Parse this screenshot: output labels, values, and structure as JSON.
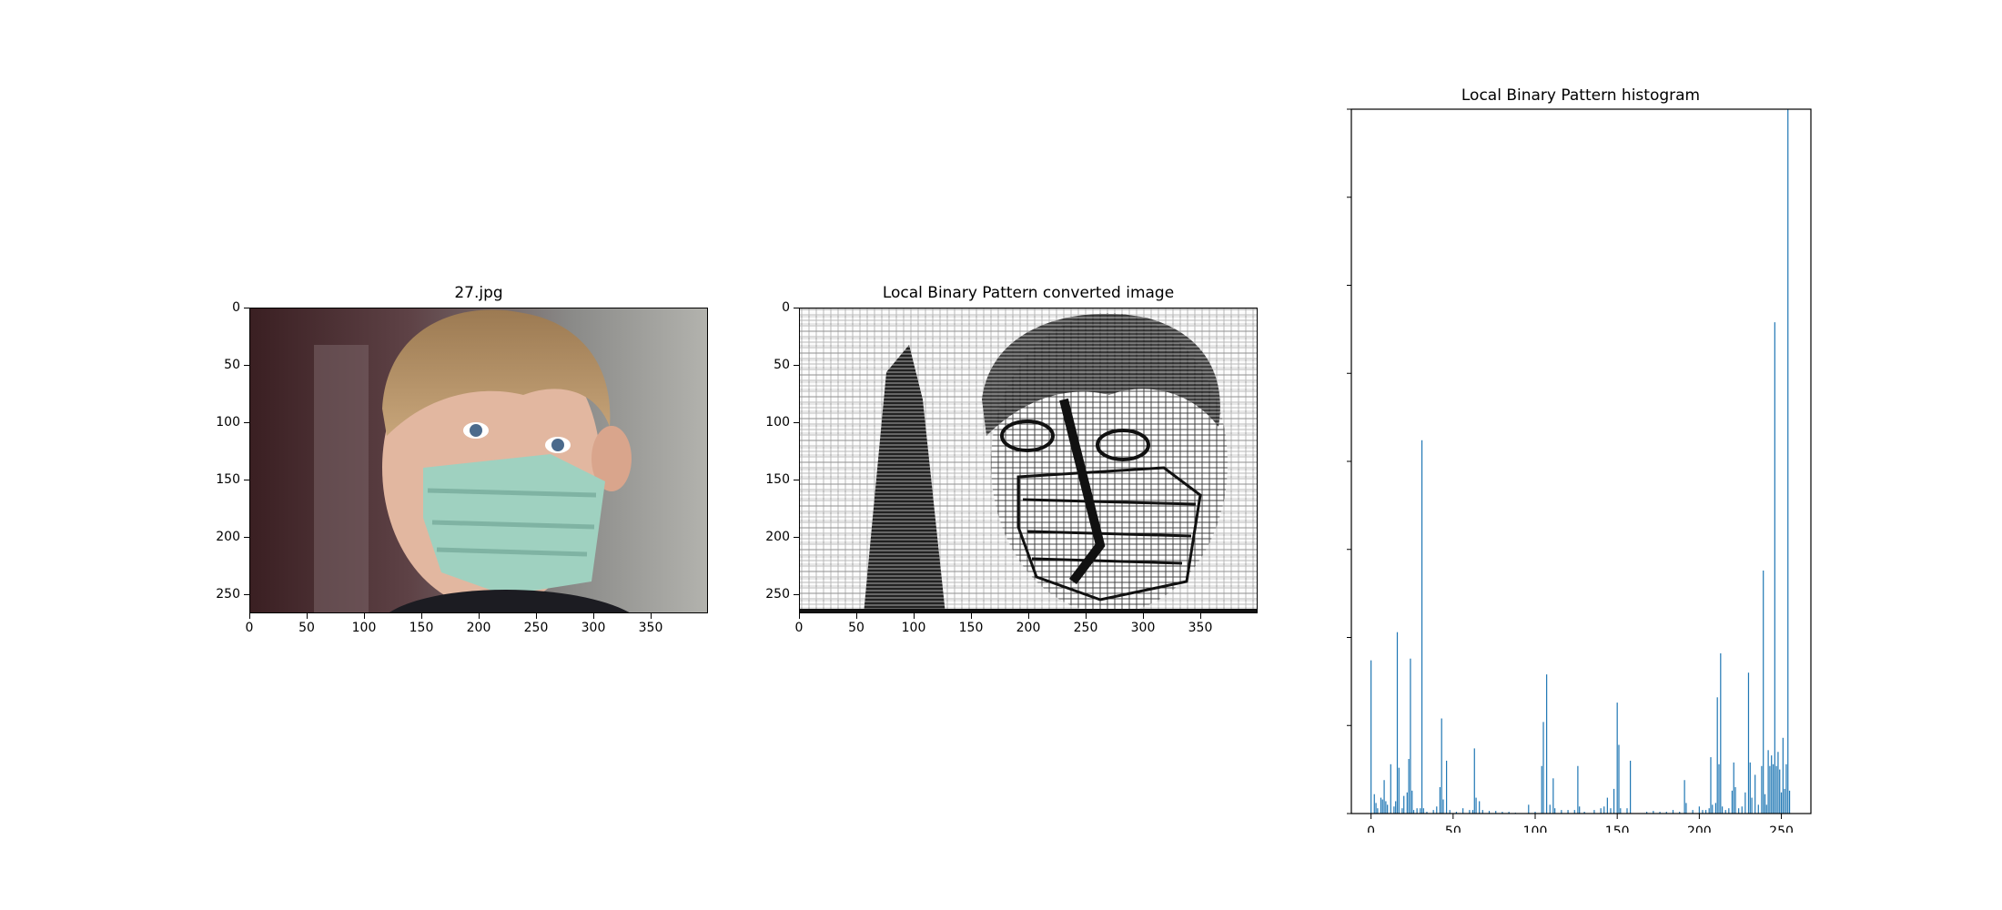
{
  "figure": {
    "panel1": {
      "title": "27.jpg",
      "xticks": [
        "0",
        "50",
        "100",
        "150",
        "200",
        "250",
        "300",
        "350"
      ],
      "yticks": [
        "0",
        "50",
        "100",
        "150",
        "200",
        "250"
      ],
      "image_desc": "photo"
    },
    "panel2": {
      "title": "Local Binary Pattern converted image",
      "xticks": [
        "0",
        "50",
        "100",
        "150",
        "200",
        "250",
        "300",
        "350"
      ],
      "yticks": [
        "0",
        "50",
        "100",
        "150",
        "200",
        "250"
      ]
    }
  },
  "chart_data": {
    "type": "bar",
    "title": "Local Binary Pattern histogram",
    "xlim": [
      -12,
      268
    ],
    "ylim": [
      0,
      40000
    ],
    "xticks": [
      0,
      50,
      100,
      150,
      200,
      250
    ],
    "yticks": [
      0,
      5000,
      10000,
      15000,
      20000,
      25000,
      30000,
      35000,
      40000
    ],
    "bar_color": "#1f77b4",
    "bins": [
      {
        "x": 0,
        "v": 8700
      },
      {
        "x": 2,
        "v": 1100
      },
      {
        "x": 3,
        "v": 600
      },
      {
        "x": 4,
        "v": 300
      },
      {
        "x": 6,
        "v": 900
      },
      {
        "x": 7,
        "v": 800
      },
      {
        "x": 8,
        "v": 1900
      },
      {
        "x": 9,
        "v": 700
      },
      {
        "x": 10,
        "v": 500
      },
      {
        "x": 12,
        "v": 2800
      },
      {
        "x": 14,
        "v": 400
      },
      {
        "x": 15,
        "v": 700
      },
      {
        "x": 16,
        "v": 10300
      },
      {
        "x": 17,
        "v": 2600
      },
      {
        "x": 19,
        "v": 300
      },
      {
        "x": 20,
        "v": 1000
      },
      {
        "x": 22,
        "v": 1200
      },
      {
        "x": 23,
        "v": 3100
      },
      {
        "x": 24,
        "v": 8800
      },
      {
        "x": 25,
        "v": 1300
      },
      {
        "x": 26,
        "v": 200
      },
      {
        "x": 28,
        "v": 300
      },
      {
        "x": 30,
        "v": 300
      },
      {
        "x": 31,
        "v": 21200
      },
      {
        "x": 32,
        "v": 300
      },
      {
        "x": 34,
        "v": 100
      },
      {
        "x": 38,
        "v": 200
      },
      {
        "x": 40,
        "v": 400
      },
      {
        "x": 42,
        "v": 1500
      },
      {
        "x": 43,
        "v": 5400
      },
      {
        "x": 44,
        "v": 800
      },
      {
        "x": 46,
        "v": 3000
      },
      {
        "x": 48,
        "v": 200
      },
      {
        "x": 52,
        "v": 100
      },
      {
        "x": 56,
        "v": 300
      },
      {
        "x": 60,
        "v": 200
      },
      {
        "x": 62,
        "v": 200
      },
      {
        "x": 63,
        "v": 3700
      },
      {
        "x": 64,
        "v": 900
      },
      {
        "x": 66,
        "v": 700
      },
      {
        "x": 68,
        "v": 200
      },
      {
        "x": 72,
        "v": 150
      },
      {
        "x": 76,
        "v": 150
      },
      {
        "x": 80,
        "v": 100
      },
      {
        "x": 84,
        "v": 100
      },
      {
        "x": 88,
        "v": 50
      },
      {
        "x": 96,
        "v": 500
      },
      {
        "x": 100,
        "v": 100
      },
      {
        "x": 104,
        "v": 2700
      },
      {
        "x": 105,
        "v": 5200
      },
      {
        "x": 107,
        "v": 7900
      },
      {
        "x": 109,
        "v": 500
      },
      {
        "x": 111,
        "v": 2000
      },
      {
        "x": 112,
        "v": 300
      },
      {
        "x": 116,
        "v": 200
      },
      {
        "x": 120,
        "v": 200
      },
      {
        "x": 124,
        "v": 200
      },
      {
        "x": 126,
        "v": 2700
      },
      {
        "x": 127,
        "v": 400
      },
      {
        "x": 130,
        "v": 100
      },
      {
        "x": 136,
        "v": 200
      },
      {
        "x": 140,
        "v": 300
      },
      {
        "x": 142,
        "v": 400
      },
      {
        "x": 144,
        "v": 900
      },
      {
        "x": 146,
        "v": 300
      },
      {
        "x": 148,
        "v": 1400
      },
      {
        "x": 150,
        "v": 6300
      },
      {
        "x": 151,
        "v": 3900
      },
      {
        "x": 152,
        "v": 300
      },
      {
        "x": 156,
        "v": 300
      },
      {
        "x": 158,
        "v": 3000
      },
      {
        "x": 168,
        "v": 100
      },
      {
        "x": 172,
        "v": 150
      },
      {
        "x": 176,
        "v": 100
      },
      {
        "x": 180,
        "v": 100
      },
      {
        "x": 184,
        "v": 200
      },
      {
        "x": 188,
        "v": 100
      },
      {
        "x": 191,
        "v": 1900
      },
      {
        "x": 192,
        "v": 600
      },
      {
        "x": 196,
        "v": 200
      },
      {
        "x": 200,
        "v": 400
      },
      {
        "x": 202,
        "v": 200
      },
      {
        "x": 204,
        "v": 200
      },
      {
        "x": 206,
        "v": 300
      },
      {
        "x": 207,
        "v": 3200
      },
      {
        "x": 208,
        "v": 500
      },
      {
        "x": 210,
        "v": 600
      },
      {
        "x": 211,
        "v": 6600
      },
      {
        "x": 212,
        "v": 2800
      },
      {
        "x": 213,
        "v": 9100
      },
      {
        "x": 214,
        "v": 400
      },
      {
        "x": 216,
        "v": 200
      },
      {
        "x": 218,
        "v": 300
      },
      {
        "x": 220,
        "v": 1300
      },
      {
        "x": 221,
        "v": 2900
      },
      {
        "x": 222,
        "v": 1500
      },
      {
        "x": 224,
        "v": 300
      },
      {
        "x": 226,
        "v": 400
      },
      {
        "x": 228,
        "v": 1200
      },
      {
        "x": 230,
        "v": 8000
      },
      {
        "x": 231,
        "v": 2900
      },
      {
        "x": 232,
        "v": 900
      },
      {
        "x": 234,
        "v": 2200
      },
      {
        "x": 236,
        "v": 500
      },
      {
        "x": 238,
        "v": 2700
      },
      {
        "x": 239,
        "v": 13800
      },
      {
        "x": 240,
        "v": 1100
      },
      {
        "x": 241,
        "v": 500
      },
      {
        "x": 242,
        "v": 3600
      },
      {
        "x": 243,
        "v": 2700
      },
      {
        "x": 244,
        "v": 3300
      },
      {
        "x": 245,
        "v": 2800
      },
      {
        "x": 246,
        "v": 27900
      },
      {
        "x": 247,
        "v": 2700
      },
      {
        "x": 248,
        "v": 3500
      },
      {
        "x": 249,
        "v": 2500
      },
      {
        "x": 250,
        "v": 1200
      },
      {
        "x": 251,
        "v": 4300
      },
      {
        "x": 252,
        "v": 1400
      },
      {
        "x": 253,
        "v": 2800
      },
      {
        "x": 254,
        "v": 40000
      },
      {
        "x": 255,
        "v": 1300
      }
    ]
  }
}
